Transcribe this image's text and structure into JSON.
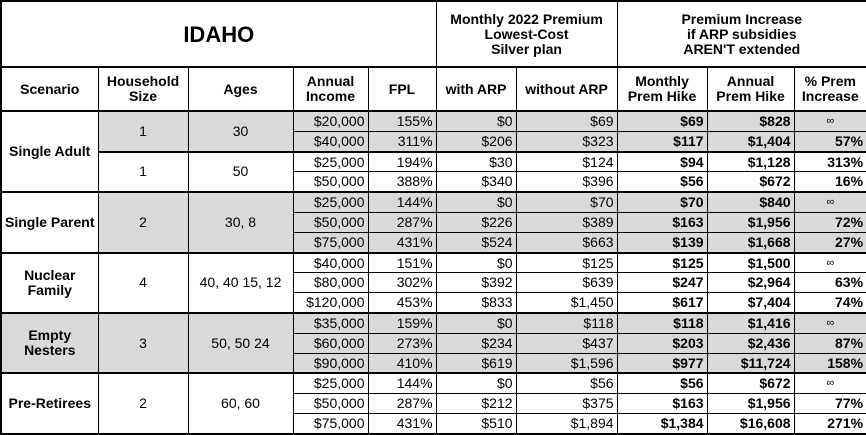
{
  "header": {
    "title": "IDAHO",
    "premium_group": [
      "Monthly 2022 Premium",
      "Lowest-Cost",
      "Silver plan"
    ],
    "increase_group": [
      "Premium Increase",
      "if ARP subsidies",
      "AREN'T extended"
    ],
    "columns": [
      "Scenario",
      "Household Size",
      "Ages",
      "Annual Income",
      "FPL",
      "with ARP",
      "without ARP",
      "Monthly Prem Hike",
      "Annual Prem Hike",
      "% Prem Increase"
    ]
  },
  "groups": [
    {
      "scenario": "Single Adult",
      "scenario_shaded": false,
      "subgroups": [
        {
          "household": "1",
          "ages": "30",
          "shaded": true,
          "rows": [
            [
              "$20,000",
              "155%",
              "$0",
              "$69",
              "$69",
              "$828",
              "∞"
            ],
            [
              "$40,000",
              "311%",
              "$206",
              "$323",
              "$117",
              "$1,404",
              "57%"
            ]
          ]
        },
        {
          "household": "1",
          "ages": "50",
          "shaded": false,
          "rows": [
            [
              "$25,000",
              "194%",
              "$30",
              "$124",
              "$94",
              "$1,128",
              "313%"
            ],
            [
              "$50,000",
              "388%",
              "$340",
              "$396",
              "$56",
              "$672",
              "16%"
            ]
          ]
        }
      ]
    },
    {
      "scenario": "Single Parent",
      "scenario_shaded": false,
      "subgroups": [
        {
          "household": "2",
          "ages": "30, 8",
          "shaded": true,
          "rows": [
            [
              "$25,000",
              "144%",
              "$0",
              "$70",
              "$70",
              "$840",
              "∞"
            ],
            [
              "$50,000",
              "287%",
              "$226",
              "$389",
              "$163",
              "$1,956",
              "72%"
            ],
            [
              "$75,000",
              "431%",
              "$524",
              "$663",
              "$139",
              "$1,668",
              "27%"
            ]
          ]
        }
      ]
    },
    {
      "scenario": "Nuclear Family",
      "scenario_shaded": false,
      "subgroups": [
        {
          "household": "4",
          "ages": "40, 40 15, 12",
          "shaded": false,
          "rows": [
            [
              "$40,000",
              "151%",
              "$0",
              "$125",
              "$125",
              "$1,500",
              "∞"
            ],
            [
              "$80,000",
              "302%",
              "$392",
              "$639",
              "$247",
              "$2,964",
              "63%"
            ],
            [
              "$120,000",
              "453%",
              "$833",
              "$1,450",
              "$617",
              "$7,404",
              "74%"
            ]
          ]
        }
      ]
    },
    {
      "scenario": "Empty Nesters",
      "scenario_shaded": true,
      "subgroups": [
        {
          "household": "3",
          "ages": "50, 50 24",
          "shaded": true,
          "rows": [
            [
              "$35,000",
              "159%",
              "$0",
              "$118",
              "$118",
              "$1,416",
              "∞"
            ],
            [
              "$60,000",
              "273%",
              "$234",
              "$437",
              "$203",
              "$2,436",
              "87%"
            ],
            [
              "$90,000",
              "410%",
              "$619",
              "$1,596",
              "$977",
              "$11,724",
              "158%"
            ]
          ]
        }
      ]
    },
    {
      "scenario": "Pre-Retirees",
      "scenario_shaded": false,
      "subgroups": [
        {
          "household": "2",
          "ages": "60, 60",
          "shaded": false,
          "rows": [
            [
              "$25,000",
              "144%",
              "$0",
              "$56",
              "$56",
              "$672",
              "∞"
            ],
            [
              "$50,000",
              "287%",
              "$212",
              "$375",
              "$163",
              "$1,956",
              "77%"
            ],
            [
              "$75,000",
              "431%",
              "$510",
              "$1,894",
              "$1,384",
              "$16,608",
              "271%"
            ]
          ]
        }
      ]
    }
  ]
}
